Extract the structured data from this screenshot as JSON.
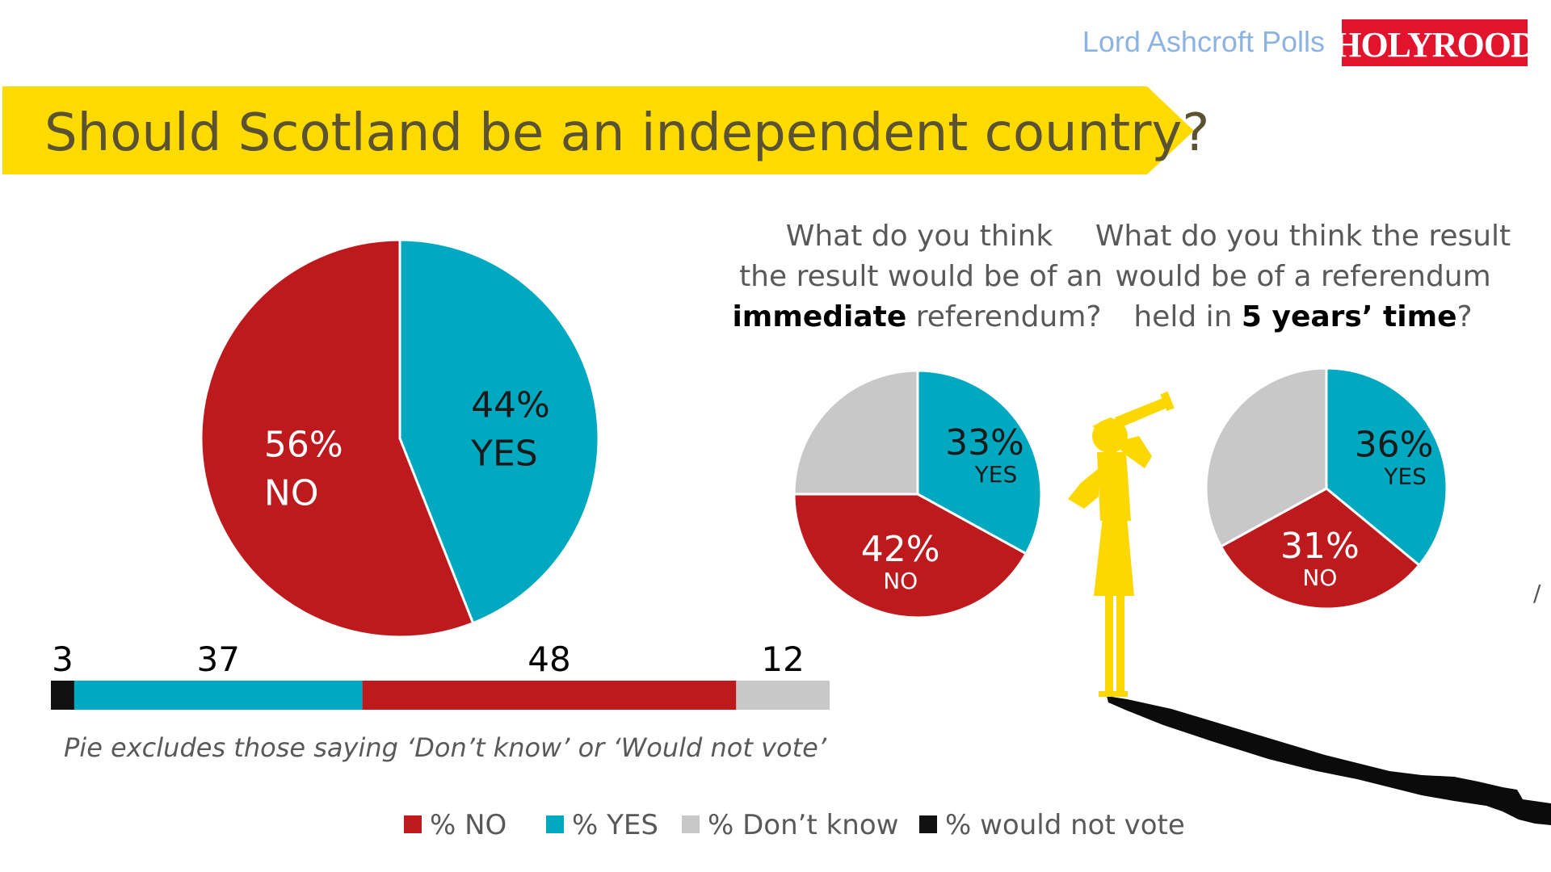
{
  "header": {
    "pollster": "Lord Ashcroft Polls",
    "publication": "HOLYROOD"
  },
  "title": "Should Scotland be an independent country?",
  "questions": {
    "immediate": {
      "line1": "What do you think",
      "line2": "the result would be of an",
      "bold": "immediate",
      "rest": " referendum?"
    },
    "five_years": {
      "line1": "What do you think the result",
      "line2": "would be of a referendum",
      "prefix": "held in ",
      "bold": "5 years’ time",
      "suffix": "?"
    }
  },
  "note": "Pie excludes those saying ‘Don’t know’ or ‘Would not vote’",
  "legend": [
    {
      "label": "% NO",
      "color": "#BE1A1D"
    },
    {
      "label": "% YES",
      "color": "#00A8C0"
    },
    {
      "label": "% Don’t know",
      "color": "#C8C8C8"
    },
    {
      "label": "% would not vote",
      "color": "#111111"
    }
  ],
  "colors": {
    "no": "#BE1A1D",
    "yes": "#00A8C0",
    "dont_know": "#C8C8C8",
    "would_not_vote": "#111111",
    "banner": "#FDDA00",
    "silhouette": "#FCD800",
    "holyrood_bg": "#E2142D"
  },
  "chart_data": [
    {
      "type": "pie",
      "id": "main",
      "slices": [
        {
          "category": "YES",
          "value": 44,
          "label_pct": "44%",
          "label_cat": "YES"
        },
        {
          "category": "NO",
          "value": 56,
          "label_pct": "56%",
          "label_cat": "NO"
        }
      ]
    },
    {
      "type": "bar",
      "id": "stacked",
      "stacked": true,
      "segments": [
        {
          "category": "% would not vote",
          "value": 3,
          "label": "3"
        },
        {
          "category": "% YES",
          "value": 37,
          "label": "37"
        },
        {
          "category": "% NO",
          "value": 48,
          "label": "48"
        },
        {
          "category": "% Don’t know",
          "value": 12,
          "label": "12"
        }
      ]
    },
    {
      "type": "pie",
      "id": "immediate",
      "slices": [
        {
          "category": "YES",
          "value": 33,
          "label_pct": "33%",
          "label_cat": "YES"
        },
        {
          "category": "NO",
          "value": 42,
          "label_pct": "42%",
          "label_cat": "NO"
        },
        {
          "category": "Don’t know",
          "value": 25,
          "label_pct": "",
          "label_cat": ""
        }
      ]
    },
    {
      "type": "pie",
      "id": "five_years",
      "slices": [
        {
          "category": "YES",
          "value": 36,
          "label_pct": "36%",
          "label_cat": "YES"
        },
        {
          "category": "NO",
          "value": 31,
          "label_pct": "31%",
          "label_cat": "NO"
        },
        {
          "category": "Don’t know",
          "value": 33,
          "label_pct": "",
          "label_cat": ""
        }
      ]
    }
  ]
}
